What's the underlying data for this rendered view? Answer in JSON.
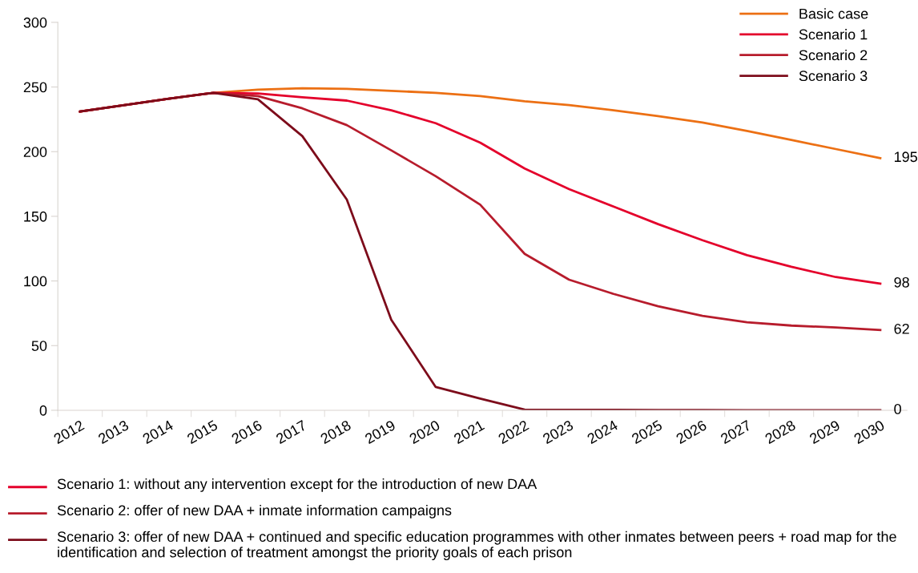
{
  "chart_data": {
    "type": "line",
    "categories": [
      "2012",
      "2013",
      "2014",
      "2015",
      "2016",
      "2017",
      "2018",
      "2019",
      "2020",
      "2021",
      "2022",
      "2023",
      "2024",
      "2025",
      "2026",
      "2027",
      "2028",
      "2029",
      "2030"
    ],
    "series": [
      {
        "name": "Basic case",
        "color": "#ec7014",
        "values": [
          231,
          236,
          241,
          245.5,
          248,
          249,
          248.5,
          247,
          245.5,
          243,
          239,
          236,
          232,
          227.5,
          222.5,
          216,
          209,
          202,
          195
        ],
        "value_labels": [
          null,
          null,
          null,
          null,
          null,
          null,
          null,
          null,
          null,
          null,
          null,
          null,
          null,
          null,
          null,
          null,
          null,
          null,
          "195"
        ]
      },
      {
        "name": "Scenario 1",
        "color": "#e4002b",
        "values": [
          231,
          236,
          241,
          245.5,
          245,
          242,
          239.5,
          232,
          222,
          207,
          187,
          171,
          157.5,
          144,
          131.5,
          120,
          111,
          103,
          98
        ],
        "value_labels": [
          null,
          null,
          null,
          null,
          null,
          null,
          null,
          null,
          null,
          null,
          null,
          null,
          null,
          null,
          null,
          null,
          null,
          null,
          "98"
        ]
      },
      {
        "name": "Scenario 2",
        "color": "#b71c2c",
        "values": [
          231,
          236,
          241,
          245.5,
          243,
          233.5,
          220.5,
          201,
          181,
          159,
          121,
          101,
          90,
          80.5,
          73,
          68,
          65.5,
          64,
          62
        ],
        "value_labels": [
          null,
          null,
          null,
          null,
          null,
          null,
          null,
          null,
          null,
          null,
          null,
          null,
          null,
          null,
          null,
          null,
          null,
          null,
          "62"
        ]
      },
      {
        "name": "Scenario 3",
        "color": "#7d0c1b",
        "values": [
          231,
          236,
          241,
          245.5,
          240.5,
          212,
          163,
          70,
          18,
          9,
          0.5,
          0.4,
          0.3,
          0.2,
          0.2,
          0.1,
          0.1,
          0,
          0
        ],
        "value_labels": [
          null,
          null,
          null,
          null,
          null,
          null,
          null,
          null,
          null,
          null,
          null,
          null,
          null,
          null,
          null,
          null,
          null,
          null,
          "0"
        ]
      }
    ],
    "ylim": [
      0,
      300
    ],
    "yticks": [
      0,
      50,
      100,
      150,
      200,
      250,
      300
    ],
    "grid": false,
    "legend": "top right",
    "marker": "none",
    "line_style": "solid",
    "annotations": [
      "Scenario 1: without any intervention except for the introduction of new DAA",
      "Scenario 2: offer of new DAA + inmate information campaigns",
      "Scenario 3: offer of new DAA + continued and specific education programmes with other inmates between peers + road map for the identification and selection of treatment amongst the priority goals of each prison"
    ]
  }
}
